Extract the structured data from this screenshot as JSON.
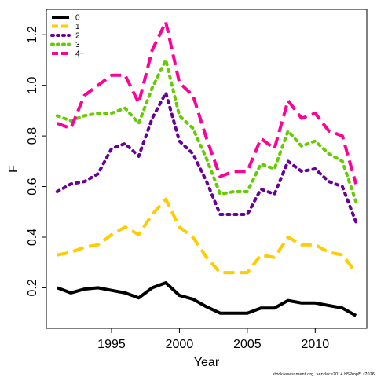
{
  "chart_data": {
    "type": "line",
    "xlabel": "Year",
    "ylabel": "F",
    "xlim": [
      1990.2,
      2013.8
    ],
    "ylim": [
      0.04,
      1.3
    ],
    "x_ticks": [
      1995,
      2000,
      2005,
      2010
    ],
    "y_ticks": [
      0.2,
      0.4,
      0.6,
      0.8,
      1.0,
      1.2
    ],
    "y_tick_labels": [
      "0.2",
      "0.4",
      "0.6",
      "0.8",
      "1.0",
      "1.2"
    ],
    "grid": false,
    "legend_position": "top-left",
    "x": [
      1991,
      1992,
      1993,
      1994,
      1995,
      1996,
      1997,
      1998,
      1999,
      2000,
      2001,
      2002,
      2003,
      2004,
      2005,
      2006,
      2007,
      2008,
      2009,
      2010,
      2011,
      2012,
      2013
    ],
    "series": [
      {
        "name": "0",
        "color": "#000000",
        "dash": "solid",
        "values": [
          0.2,
          0.18,
          0.195,
          0.2,
          0.19,
          0.18,
          0.16,
          0.2,
          0.22,
          0.17,
          0.155,
          0.125,
          0.1,
          0.1,
          0.1,
          0.12,
          0.12,
          0.15,
          0.14,
          0.14,
          0.13,
          0.12,
          0.09
        ]
      },
      {
        "name": "1",
        "color": "#FFCC00",
        "dash": "dashed",
        "values": [
          0.33,
          0.34,
          0.36,
          0.37,
          0.41,
          0.44,
          0.41,
          0.49,
          0.55,
          0.44,
          0.4,
          0.32,
          0.26,
          0.26,
          0.26,
          0.33,
          0.32,
          0.4,
          0.37,
          0.37,
          0.34,
          0.33,
          0.26
        ]
      },
      {
        "name": "2",
        "color": "#660099",
        "dash": "dotted",
        "values": [
          0.58,
          0.61,
          0.62,
          0.65,
          0.75,
          0.77,
          0.72,
          0.87,
          0.97,
          0.78,
          0.73,
          0.62,
          0.49,
          0.49,
          0.49,
          0.59,
          0.57,
          0.7,
          0.66,
          0.67,
          0.62,
          0.6,
          0.46
        ]
      },
      {
        "name": "3",
        "color": "#66CC00",
        "dash": "dotted",
        "values": [
          0.88,
          0.86,
          0.88,
          0.89,
          0.89,
          0.91,
          0.85,
          0.99,
          1.1,
          0.88,
          0.83,
          0.71,
          0.57,
          0.58,
          0.58,
          0.69,
          0.67,
          0.82,
          0.76,
          0.78,
          0.73,
          0.7,
          0.54
        ]
      },
      {
        "name": "4+",
        "color": "#FF0099",
        "dash": "dashed",
        "values": [
          0.85,
          0.83,
          0.96,
          1.0,
          1.04,
          1.04,
          0.93,
          1.14,
          1.25,
          1.01,
          0.96,
          0.79,
          0.64,
          0.66,
          0.66,
          0.79,
          0.75,
          0.94,
          0.87,
          0.89,
          0.82,
          0.8,
          0.61
        ]
      }
    ]
  },
  "credit": "stockassessment.org, vendace2014 HSPropF, r7026"
}
